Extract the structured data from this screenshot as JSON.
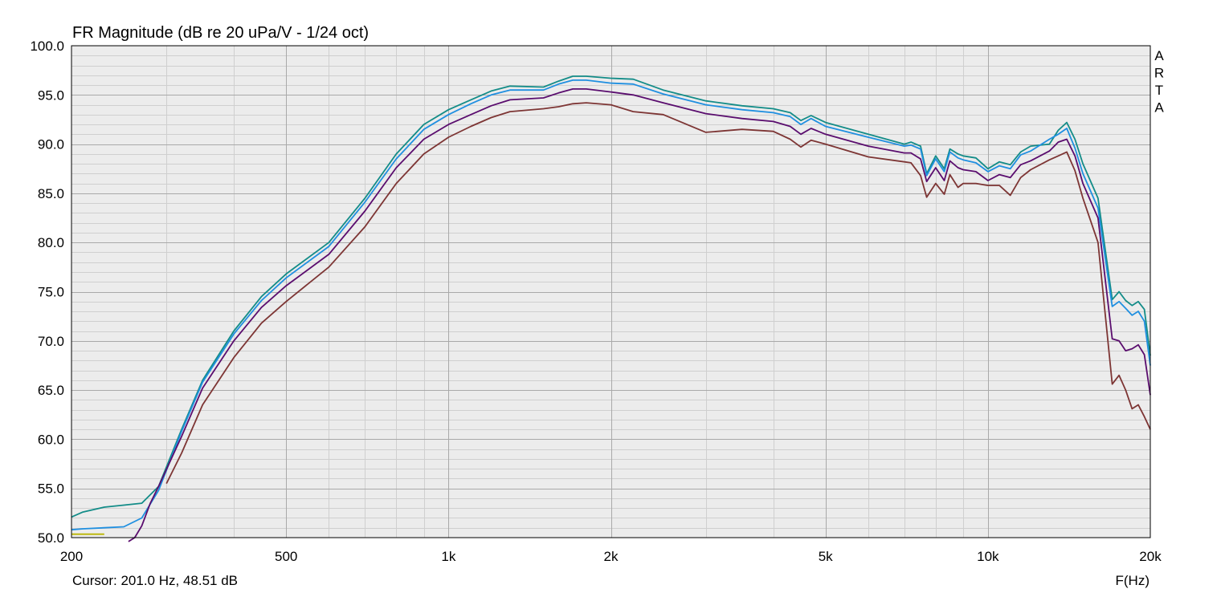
{
  "chart_data": {
    "type": "line",
    "title": "FR Magnitude (dB re 20 uPa/V - 1/24 oct)",
    "xlabel": "F(Hz)",
    "x_scale": "log",
    "xlim": [
      200,
      20000
    ],
    "ylim": [
      50,
      100
    ],
    "y_ticks": [
      "50.0",
      "55.0",
      "60.0",
      "65.0",
      "70.0",
      "75.0",
      "80.0",
      "85.0",
      "90.0",
      "95.0",
      "100.0"
    ],
    "x_ticks": [
      {
        "value": 200,
        "label": "200"
      },
      {
        "value": 500,
        "label": "500"
      },
      {
        "value": 1000,
        "label": "1k"
      },
      {
        "value": 2000,
        "label": "2k"
      },
      {
        "value": 5000,
        "label": "5k"
      },
      {
        "value": 10000,
        "label": "10k"
      },
      {
        "value": 20000,
        "label": "20k"
      }
    ],
    "grid": true,
    "background_color": "#ececec",
    "watermark": [
      "A",
      "R",
      "T",
      "A"
    ],
    "cursor": "Cursor: 201.0 Hz, 48.51 dB",
    "series": [
      {
        "color": "#138c88",
        "x": [
          200,
          210,
          230,
          250,
          270,
          290,
          320,
          350,
          400,
          450,
          500,
          600,
          700,
          800,
          900,
          1000,
          1100,
          1200,
          1300,
          1500,
          1600,
          1700,
          1800,
          2000,
          2200,
          2500,
          3000,
          3500,
          4000,
          4300,
          4500,
          4700,
          5000,
          6000,
          7000,
          7200,
          7500,
          7700,
          8000,
          8300,
          8500,
          8800,
          9000,
          9500,
          10000,
          10500,
          11000,
          11500,
          12000,
          13000,
          13500,
          14000,
          14500,
          15000,
          16000,
          17000,
          17500,
          18000,
          18500,
          19000,
          19500,
          20000
        ],
        "y": [
          52.1,
          52.6,
          53.1,
          53.3,
          53.5,
          55.2,
          61.0,
          66.0,
          71.0,
          74.5,
          76.8,
          80.0,
          84.5,
          89.0,
          92.0,
          93.5,
          94.5,
          95.4,
          95.9,
          95.8,
          96.4,
          96.9,
          96.9,
          96.7,
          96.6,
          95.5,
          94.4,
          93.9,
          93.6,
          93.2,
          92.4,
          92.9,
          92.2,
          91.0,
          90.0,
          90.2,
          89.8,
          87.0,
          88.8,
          87.5,
          89.5,
          89.0,
          88.8,
          88.6,
          87.5,
          88.2,
          87.9,
          89.2,
          89.8,
          90.0,
          91.4,
          92.2,
          90.5,
          88.0,
          84.5,
          74.2,
          75.0,
          74.1,
          73.6,
          74.0,
          73.2,
          68.5
        ]
      },
      {
        "color": "#1f8fe0",
        "x": [
          200,
          210,
          230,
          250,
          270,
          290,
          320,
          350,
          400,
          450,
          500,
          600,
          700,
          800,
          900,
          1000,
          1100,
          1200,
          1300,
          1500,
          1600,
          1700,
          1800,
          2000,
          2200,
          2500,
          3000,
          3500,
          4000,
          4300,
          4500,
          4700,
          5000,
          6000,
          7000,
          7200,
          7500,
          7700,
          8000,
          8300,
          8500,
          8800,
          9000,
          9500,
          10000,
          10500,
          11000,
          11500,
          12000,
          13000,
          13500,
          14000,
          14500,
          15000,
          16000,
          17000,
          17500,
          18000,
          18500,
          19000,
          19500,
          20000
        ],
        "y": [
          50.8,
          50.9,
          51.0,
          51.1,
          52.0,
          54.8,
          60.8,
          65.8,
          70.7,
          74.1,
          76.4,
          79.6,
          84.1,
          88.5,
          91.5,
          93.0,
          94.1,
          95.0,
          95.5,
          95.5,
          96.1,
          96.5,
          96.5,
          96.2,
          96.1,
          95.1,
          94.0,
          93.5,
          93.2,
          92.8,
          92.0,
          92.6,
          91.8,
          90.7,
          89.8,
          89.9,
          89.5,
          86.8,
          88.5,
          87.2,
          89.2,
          88.6,
          88.4,
          88.1,
          87.2,
          87.8,
          87.5,
          88.9,
          89.3,
          90.5,
          91.0,
          91.6,
          89.6,
          87.0,
          83.5,
          73.5,
          74.0,
          73.3,
          72.6,
          73.0,
          72.0,
          67.5
        ]
      },
      {
        "color": "#5a0d6e",
        "x": [
          255,
          262,
          270,
          280,
          290,
          320,
          350,
          400,
          450,
          500,
          600,
          700,
          800,
          900,
          1000,
          1100,
          1200,
          1300,
          1500,
          1600,
          1700,
          1800,
          2000,
          2200,
          2500,
          3000,
          3500,
          4000,
          4300,
          4500,
          4700,
          5000,
          6000,
          7000,
          7200,
          7500,
          7700,
          8000,
          8300,
          8500,
          8800,
          9000,
          9500,
          10000,
          10500,
          11000,
          11500,
          12000,
          13000,
          13500,
          14000,
          14500,
          15000,
          16000,
          17000,
          17500,
          18000,
          18500,
          19000,
          19500,
          20000
        ],
        "y": [
          49.6,
          50.0,
          51.2,
          53.5,
          55.2,
          60.3,
          65.2,
          70.0,
          73.4,
          75.6,
          78.8,
          83.2,
          87.6,
          90.5,
          92.0,
          93.0,
          93.9,
          94.5,
          94.7,
          95.2,
          95.6,
          95.6,
          95.3,
          95.0,
          94.2,
          93.1,
          92.6,
          92.3,
          91.8,
          91.0,
          91.6,
          91.0,
          89.8,
          89.1,
          89.1,
          88.5,
          86.2,
          87.6,
          86.3,
          88.3,
          87.6,
          87.4,
          87.2,
          86.3,
          86.9,
          86.6,
          87.9,
          88.3,
          89.3,
          90.2,
          90.5,
          88.8,
          86.0,
          82.5,
          70.2,
          70.0,
          69.0,
          69.2,
          69.6,
          68.6,
          64.5
        ]
      },
      {
        "color": "#7d3534",
        "x": [
          300,
          320,
          350,
          400,
          450,
          500,
          600,
          700,
          800,
          900,
          1000,
          1100,
          1200,
          1300,
          1500,
          1600,
          1700,
          1800,
          2000,
          2200,
          2500,
          3000,
          3500,
          4000,
          4300,
          4500,
          4700,
          5000,
          6000,
          7000,
          7200,
          7500,
          7700,
          8000,
          8300,
          8500,
          8800,
          9000,
          9500,
          10000,
          10500,
          11000,
          11500,
          12000,
          13000,
          13500,
          14000,
          14500,
          15000,
          16000,
          17000,
          17500,
          18000,
          18500,
          19000,
          19500,
          20000
        ],
        "y": [
          55.5,
          58.6,
          63.5,
          68.3,
          71.8,
          74.0,
          77.5,
          81.6,
          86.0,
          89.0,
          90.7,
          91.8,
          92.7,
          93.3,
          93.6,
          93.8,
          94.1,
          94.2,
          94.0,
          93.3,
          93.0,
          91.2,
          91.5,
          91.3,
          90.5,
          89.7,
          90.4,
          90.0,
          88.7,
          88.2,
          88.1,
          86.8,
          84.6,
          86.0,
          84.9,
          86.9,
          85.6,
          86.0,
          86.0,
          85.8,
          85.8,
          84.8,
          86.6,
          87.4,
          88.4,
          88.8,
          89.2,
          87.3,
          84.5,
          80.0,
          65.6,
          66.5,
          65.0,
          63.1,
          63.5,
          62.3,
          61.0
        ]
      },
      {
        "color": "#b9b400",
        "x": [
          200,
          230
        ],
        "y": [
          50.35,
          50.35
        ]
      }
    ]
  }
}
